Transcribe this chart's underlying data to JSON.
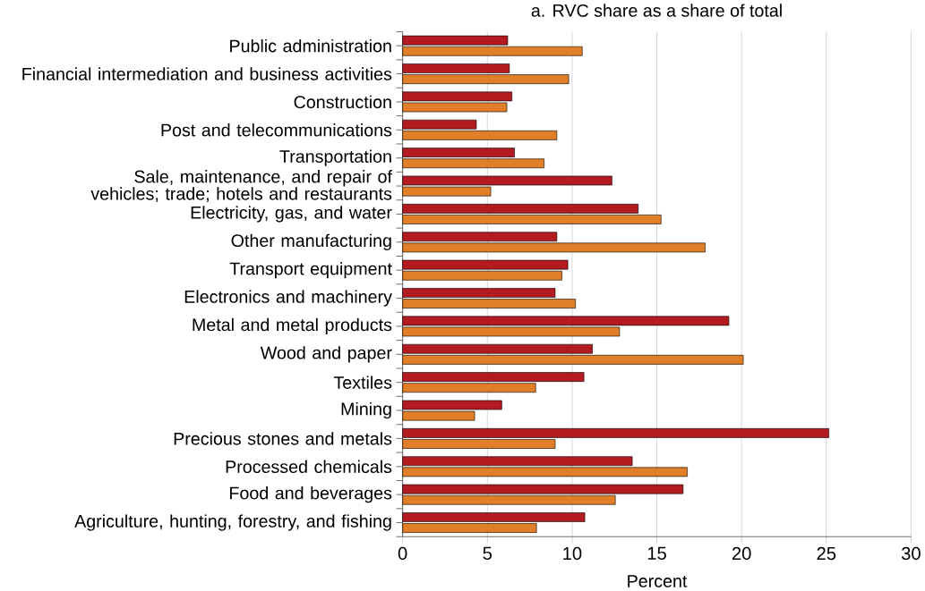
{
  "chart_data": {
    "type": "bar",
    "orientation": "horizontal",
    "title": "a. RVC share as a share of total",
    "xlabel": "Percent",
    "categories": [
      "Public administration",
      "Financial intermediation and business activities",
      "Construction",
      "Post and telecommunications",
      "Transportation",
      "Sale, maintenance, and repair of vehicles; trade; hotels and restaurants",
      "Electricity, gas, and water",
      "Other manufacturing",
      "Transport equipment",
      "Electronics and machinery",
      "Metal and metal products",
      "Wood and paper",
      "Textiles",
      "Mining",
      "Precious stones and metals",
      "Processed chemicals",
      "Food and beverages",
      "Agriculture, hunting, forestry, and fishing"
    ],
    "series": [
      {
        "color": "#b31b21",
        "values": [
          6.2,
          6.3,
          6.45,
          4.35,
          6.6,
          12.35,
          13.9,
          9.1,
          9.75,
          9.0,
          19.25,
          11.2,
          10.7,
          5.85,
          25.15,
          13.55,
          16.55,
          10.75
        ]
      },
      {
        "color": "#e07f28",
        "values": [
          10.6,
          9.8,
          6.15,
          9.1,
          8.35,
          5.2,
          15.25,
          17.85,
          9.4,
          10.2,
          12.8,
          20.1,
          7.85,
          4.25,
          9.0,
          16.8,
          12.55,
          7.9
        ]
      }
    ],
    "xlim": [
      0,
      30
    ],
    "xticks": [
      0,
      5,
      10,
      15,
      20,
      25,
      30
    ],
    "grid": "x"
  }
}
